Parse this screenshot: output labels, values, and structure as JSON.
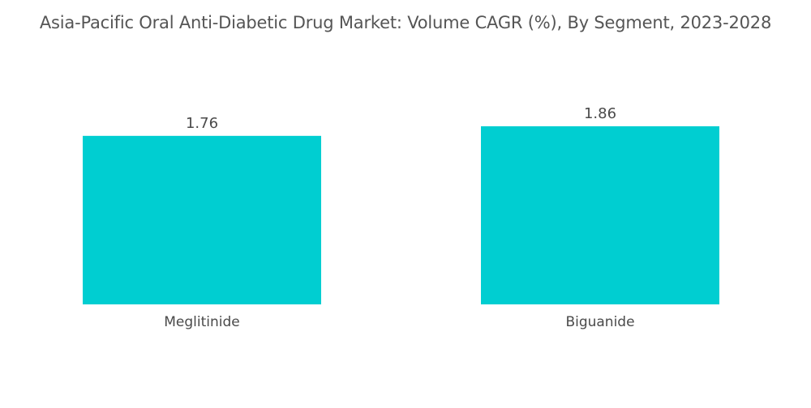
{
  "chart_data": {
    "type": "bar",
    "title": "Asia-Pacific Oral Anti-Diabetic Drug Market: Volume CAGR (%), By Segment, 2023-2028",
    "categories": [
      "Meglitinide",
      "Biguanide"
    ],
    "values": [
      1.76,
      1.86
    ],
    "value_labels": [
      "1.76",
      "1.86"
    ],
    "xlabel": "",
    "ylabel": "",
    "ylim": [
      0,
      1.86
    ],
    "grid": false,
    "legend": "none",
    "bar_color": "#00CED1"
  }
}
